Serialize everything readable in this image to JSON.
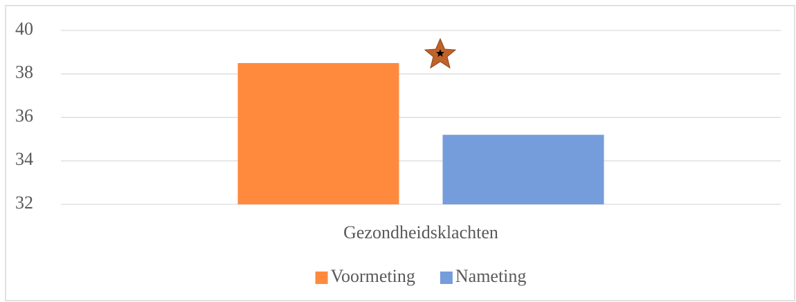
{
  "chart_data": {
    "type": "bar",
    "categories": [
      "Gezondheidsklachten"
    ],
    "series": [
      {
        "name": "Voormeting",
        "color": "#ff8a3d",
        "values": [
          38.5
        ]
      },
      {
        "name": "Nameting",
        "color": "#759cdb",
        "values": [
          35.2
        ]
      }
    ],
    "ylim": [
      32,
      40
    ],
    "yticks": [
      32,
      34,
      36,
      38,
      40
    ],
    "grid": true,
    "legend": "bottom"
  }
}
